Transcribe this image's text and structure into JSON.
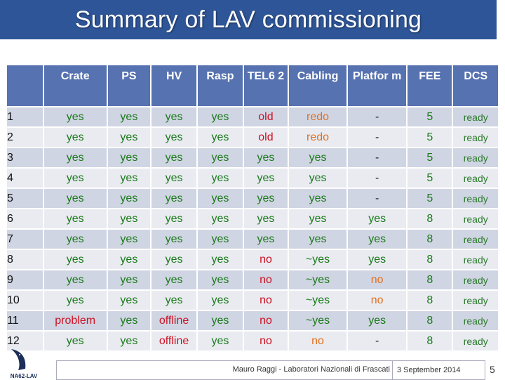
{
  "slide": {
    "title": "Summary of LAV commissioning",
    "page_number": "5"
  },
  "table": {
    "headers": [
      "",
      "Crate",
      "PS",
      "HV",
      "Rasp",
      "TEL6 2",
      "Cabling",
      "Platfor m",
      "FEE",
      "DCS"
    ],
    "rows": [
      {
        "id": "1",
        "crate": "yes",
        "ps": "yes",
        "hv": "yes",
        "rasp": "yes",
        "tel62": "old",
        "cabling": "redo",
        "platform": "-",
        "fee": "5",
        "dcs": "ready"
      },
      {
        "id": "2",
        "crate": "yes",
        "ps": "yes",
        "hv": "yes",
        "rasp": "yes",
        "tel62": "old",
        "cabling": "redo",
        "platform": "-",
        "fee": "5",
        "dcs": "ready"
      },
      {
        "id": "3",
        "crate": "yes",
        "ps": "yes",
        "hv": "yes",
        "rasp": "yes",
        "tel62": "yes",
        "cabling": "yes",
        "platform": "-",
        "fee": "5",
        "dcs": "ready"
      },
      {
        "id": "4",
        "crate": "yes",
        "ps": "yes",
        "hv": "yes",
        "rasp": "yes",
        "tel62": "yes",
        "cabling": "yes",
        "platform": "-",
        "fee": "5",
        "dcs": "ready"
      },
      {
        "id": "5",
        "crate": "yes",
        "ps": "yes",
        "hv": "yes",
        "rasp": "yes",
        "tel62": "yes",
        "cabling": "yes",
        "platform": "-",
        "fee": "5",
        "dcs": "ready"
      },
      {
        "id": "6",
        "crate": "yes",
        "ps": "yes",
        "hv": "yes",
        "rasp": "yes",
        "tel62": "yes",
        "cabling": "yes",
        "platform": "yes",
        "fee": "8",
        "dcs": "ready"
      },
      {
        "id": "7",
        "crate": "yes",
        "ps": "yes",
        "hv": "yes",
        "rasp": "yes",
        "tel62": "yes",
        "cabling": "yes",
        "platform": "yes",
        "fee": "8",
        "dcs": "ready"
      },
      {
        "id": "8",
        "crate": "yes",
        "ps": "yes",
        "hv": "yes",
        "rasp": "yes",
        "tel62": "no",
        "cabling": "~yes",
        "platform": "yes",
        "fee": "8",
        "dcs": "ready"
      },
      {
        "id": "9",
        "crate": "yes",
        "ps": "yes",
        "hv": "yes",
        "rasp": "yes",
        "tel62": "no",
        "cabling": "~yes",
        "platform": "no",
        "fee": "8",
        "dcs": "ready"
      },
      {
        "id": "10",
        "crate": "yes",
        "ps": "yes",
        "hv": "yes",
        "rasp": "yes",
        "tel62": "no",
        "cabling": "~yes",
        "platform": "no",
        "fee": "8",
        "dcs": "ready"
      },
      {
        "id": "11",
        "crate": "problem",
        "ps": "yes",
        "hv": "offline",
        "rasp": "yes",
        "tel62": "no",
        "cabling": "~yes",
        "platform": "yes",
        "fee": "8",
        "dcs": "ready"
      },
      {
        "id": "12",
        "crate": "yes",
        "ps": "yes",
        "hv": "offline",
        "rasp": "yes",
        "tel62": "no",
        "cabling": "no",
        "platform": "-",
        "fee": "8",
        "dcs": "ready"
      }
    ]
  },
  "colors": {
    "title_bg": "#2e5597",
    "header_bg": "#5672b0",
    "row_odd": "#d0d5e3",
    "row_even": "#e9ebf1",
    "good": "#1a7a1a",
    "bad": "#cc1122",
    "warn": "#e07020"
  },
  "footer": {
    "author": "Mauro Raggi - Laboratori Nazionali di Frascati",
    "date": "3 September 2014",
    "logo_text": "NA62-LAV"
  }
}
